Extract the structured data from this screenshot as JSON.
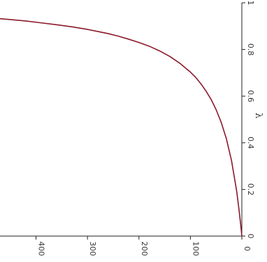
{
  "chart_data": {
    "type": "line",
    "orientation": "rotated-90-ccw",
    "title": "",
    "xlabel": "",
    "ylabel": "λ",
    "xlim": [
      0,
      470
    ],
    "ylim": [
      0,
      1
    ],
    "x_ticks": [
      "400",
      "300",
      "200",
      "100",
      "0"
    ],
    "x_tick_values": [
      400,
      300,
      200,
      100,
      0
    ],
    "y_ticks": [
      "0",
      "0.2",
      "0.4",
      "0.6",
      "0.8",
      "1"
    ],
    "y_tick_values": [
      0,
      0.2,
      0.4,
      0.6,
      0.8,
      1
    ],
    "grid": false,
    "series": [
      {
        "name": "",
        "color": "#8b1a2b",
        "x": [
          0,
          2,
          5,
          10,
          20,
          30,
          40,
          50,
          60,
          70,
          80,
          90,
          100,
          120,
          140,
          160,
          180,
          200,
          220,
          240,
          260,
          280,
          300,
          330,
          360,
          390,
          420,
          450,
          470
        ],
        "y": [
          0,
          0.044,
          0.104,
          0.192,
          0.323,
          0.417,
          0.487,
          0.542,
          0.587,
          0.623,
          0.654,
          0.681,
          0.703,
          0.74,
          0.77,
          0.794,
          0.814,
          0.83,
          0.844,
          0.857,
          0.868,
          0.877,
          0.886,
          0.897,
          0.906,
          0.914,
          0.922,
          0.928,
          0.932
        ]
      }
    ]
  }
}
